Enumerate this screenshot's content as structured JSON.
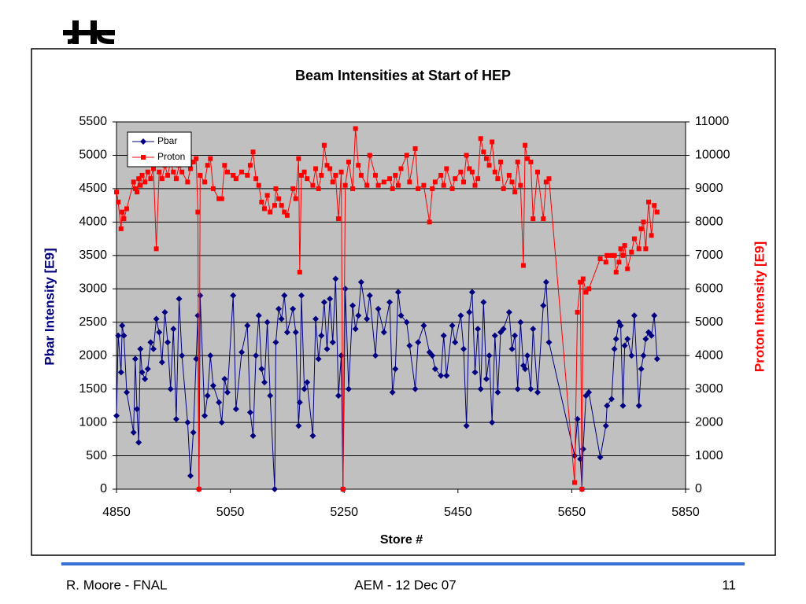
{
  "chart_data": {
    "type": "line",
    "title": "Beam Intensities at Start of HEP",
    "x_label": "Store #",
    "y_label": "Pbar Intensity  [E9]",
    "y2_label": "Proton Intensity  [E9]",
    "xlim": [
      4850,
      5850
    ],
    "xticks": [
      4850,
      5050,
      5250,
      5450,
      5650,
      5850
    ],
    "ylim": [
      0,
      5500
    ],
    "yticks": [
      0,
      500,
      1000,
      1500,
      2000,
      2500,
      3000,
      3500,
      4000,
      4500,
      5000,
      5500
    ],
    "y2lim": [
      0,
      11000
    ],
    "y2ticks": [
      0,
      1000,
      2000,
      3000,
      4000,
      5000,
      6000,
      7000,
      8000,
      9000,
      10000,
      11000
    ],
    "grid": true,
    "legend": "upper left",
    "x": [
      4850,
      4853,
      4858,
      4860,
      4863,
      4868,
      4880,
      4883,
      4886,
      4889,
      4892,
      4895,
      4900,
      4905,
      4910,
      4915,
      4920,
      4925,
      4930,
      4935,
      4940,
      4945,
      4950,
      4955,
      4960,
      4965,
      4975,
      4980,
      4985,
      4990,
      4993,
      4995,
      4997,
      5005,
      5010,
      5015,
      5020,
      5030,
      5035,
      5040,
      5045,
      5055,
      5060,
      5070,
      5080,
      5085,
      5090,
      5095,
      5100,
      5105,
      5110,
      5115,
      5120,
      5128,
      5130,
      5135,
      5140,
      5145,
      5150,
      5160,
      5165,
      5170,
      5172,
      5175,
      5180,
      5185,
      5195,
      5200,
      5205,
      5210,
      5215,
      5220,
      5225,
      5230,
      5235,
      5240,
      5245,
      5248,
      5252,
      5258,
      5265,
      5270,
      5275,
      5280,
      5290,
      5295,
      5305,
      5310,
      5320,
      5330,
      5335,
      5340,
      5345,
      5350,
      5360,
      5365,
      5375,
      5380,
      5390,
      5400,
      5405,
      5410,
      5420,
      5425,
      5430,
      5440,
      5445,
      5455,
      5460,
      5465,
      5470,
      5475,
      5480,
      5485,
      5490,
      5495,
      5500,
      5505,
      5510,
      5515,
      5520,
      5525,
      5530,
      5540,
      5545,
      5550,
      5555,
      5560,
      5565,
      5568,
      5572,
      5578,
      5582,
      5590,
      5600,
      5605,
      5610,
      5655,
      5660,
      5665,
      5668,
      5670,
      5675,
      5680,
      5700,
      5710,
      5712,
      5720,
      5725,
      5728,
      5733,
      5736,
      5740,
      5743,
      5748,
      5755,
      5760,
      5768,
      5772,
      5776,
      5780,
      5785,
      5790,
      5795,
      5800
    ],
    "series": [
      {
        "name": "Pbar",
        "color": "#000080",
        "marker": "diamond",
        "values": [
          1100,
          2300,
          1750,
          2450,
          2300,
          1450,
          850,
          1950,
          1200,
          700,
          2100,
          1750,
          1650,
          1800,
          2200,
          2100,
          2550,
          2350,
          1900,
          2650,
          2200,
          1500,
          2400,
          1050,
          2850,
          2000,
          1000,
          200,
          850,
          1950,
          2600,
          0,
          2900,
          1100,
          1400,
          2000,
          1550,
          1300,
          1000,
          1650,
          1450,
          2900,
          1200,
          2050,
          2450,
          1150,
          800,
          2000,
          2600,
          1800,
          1600,
          2500,
          1400,
          0,
          2200,
          2700,
          2550,
          2900,
          2350,
          2700,
          2350,
          950,
          1300,
          2900,
          1500,
          1600,
          800,
          2550,
          1950,
          2300,
          2800,
          2100,
          2850,
          2200,
          3150,
          1400,
          2000,
          0,
          3000,
          1500,
          2750,
          2400,
          2600,
          3100,
          2550,
          2900,
          2000,
          2700,
          2350,
          2800,
          1450,
          1800,
          2950,
          2600,
          2500,
          2150,
          1500,
          2200,
          2450,
          2050,
          2000,
          1800,
          1700,
          2300,
          1700,
          2450,
          2200,
          2600,
          2100,
          950,
          2650,
          2950,
          1750,
          2400,
          1500,
          2800,
          1650,
          2000,
          1000,
          2300,
          1450,
          2350,
          2400,
          2650,
          2100,
          2300,
          1500,
          2500,
          1850,
          1800,
          2000,
          1500,
          2400,
          1450,
          2750,
          3100,
          2200,
          500,
          1050,
          450,
          0,
          600,
          1400,
          1450,
          480,
          950,
          1250,
          1350,
          2100,
          2250,
          2500,
          2450,
          1250,
          2150,
          2250,
          2000,
          2600,
          1250,
          1800,
          2000,
          2250,
          2350,
          2300,
          2600,
          1950
        ]
      },
      {
        "name": "Proton",
        "color": "#ff0000",
        "marker": "square",
        "axis": "y2",
        "values": [
          8900,
          8600,
          7800,
          8300,
          8100,
          8400,
          9200,
          9000,
          8900,
          9300,
          9100,
          9400,
          9200,
          9500,
          9300,
          9600,
          7200,
          9500,
          9300,
          9700,
          9400,
          9800,
          9500,
          9300,
          9700,
          9500,
          9200,
          9600,
          9800,
          9900,
          8300,
          0,
          9400,
          9200,
          9700,
          9900,
          9000,
          8700,
          8700,
          9700,
          9500,
          9400,
          9300,
          9500,
          9400,
          9700,
          10100,
          9300,
          9100,
          8600,
          8400,
          8800,
          8300,
          8500,
          9000,
          8700,
          8500,
          8300,
          8200,
          9000,
          8700,
          9900,
          6500,
          9400,
          9500,
          9300,
          9100,
          9600,
          9000,
          9400,
          10300,
          9700,
          9600,
          9200,
          9400,
          8100,
          9500,
          0,
          9100,
          9800,
          9000,
          10800,
          9700,
          9400,
          9100,
          10000,
          9400,
          9100,
          9200,
          9300,
          9000,
          9400,
          9100,
          9600,
          10000,
          9200,
          10200,
          9000,
          9100,
          8000,
          9000,
          9200,
          9400,
          9100,
          9600,
          9000,
          9300,
          9500,
          9200,
          10000,
          9600,
          9500,
          9100,
          9300,
          10500,
          10100,
          9900,
          9700,
          10400,
          9500,
          9300,
          9800,
          9000,
          9400,
          9200,
          8900,
          9800,
          9100,
          6700,
          10300,
          9900,
          9800,
          8100,
          9500,
          8100,
          9200,
          9300,
          200,
          5300,
          6200,
          0,
          6300,
          5900,
          6000,
          6900,
          6800,
          7000,
          7000,
          7000,
          6500,
          6800,
          7200,
          7000,
          7300,
          6600,
          7100,
          7500,
          7200,
          7800,
          8000,
          7200,
          8600,
          7600,
          8500,
          8300
        ]
      }
    ]
  },
  "footer": {
    "left": "R. Moore - FNAL",
    "center": "AEM - 12 Dec 07",
    "right": "11"
  }
}
